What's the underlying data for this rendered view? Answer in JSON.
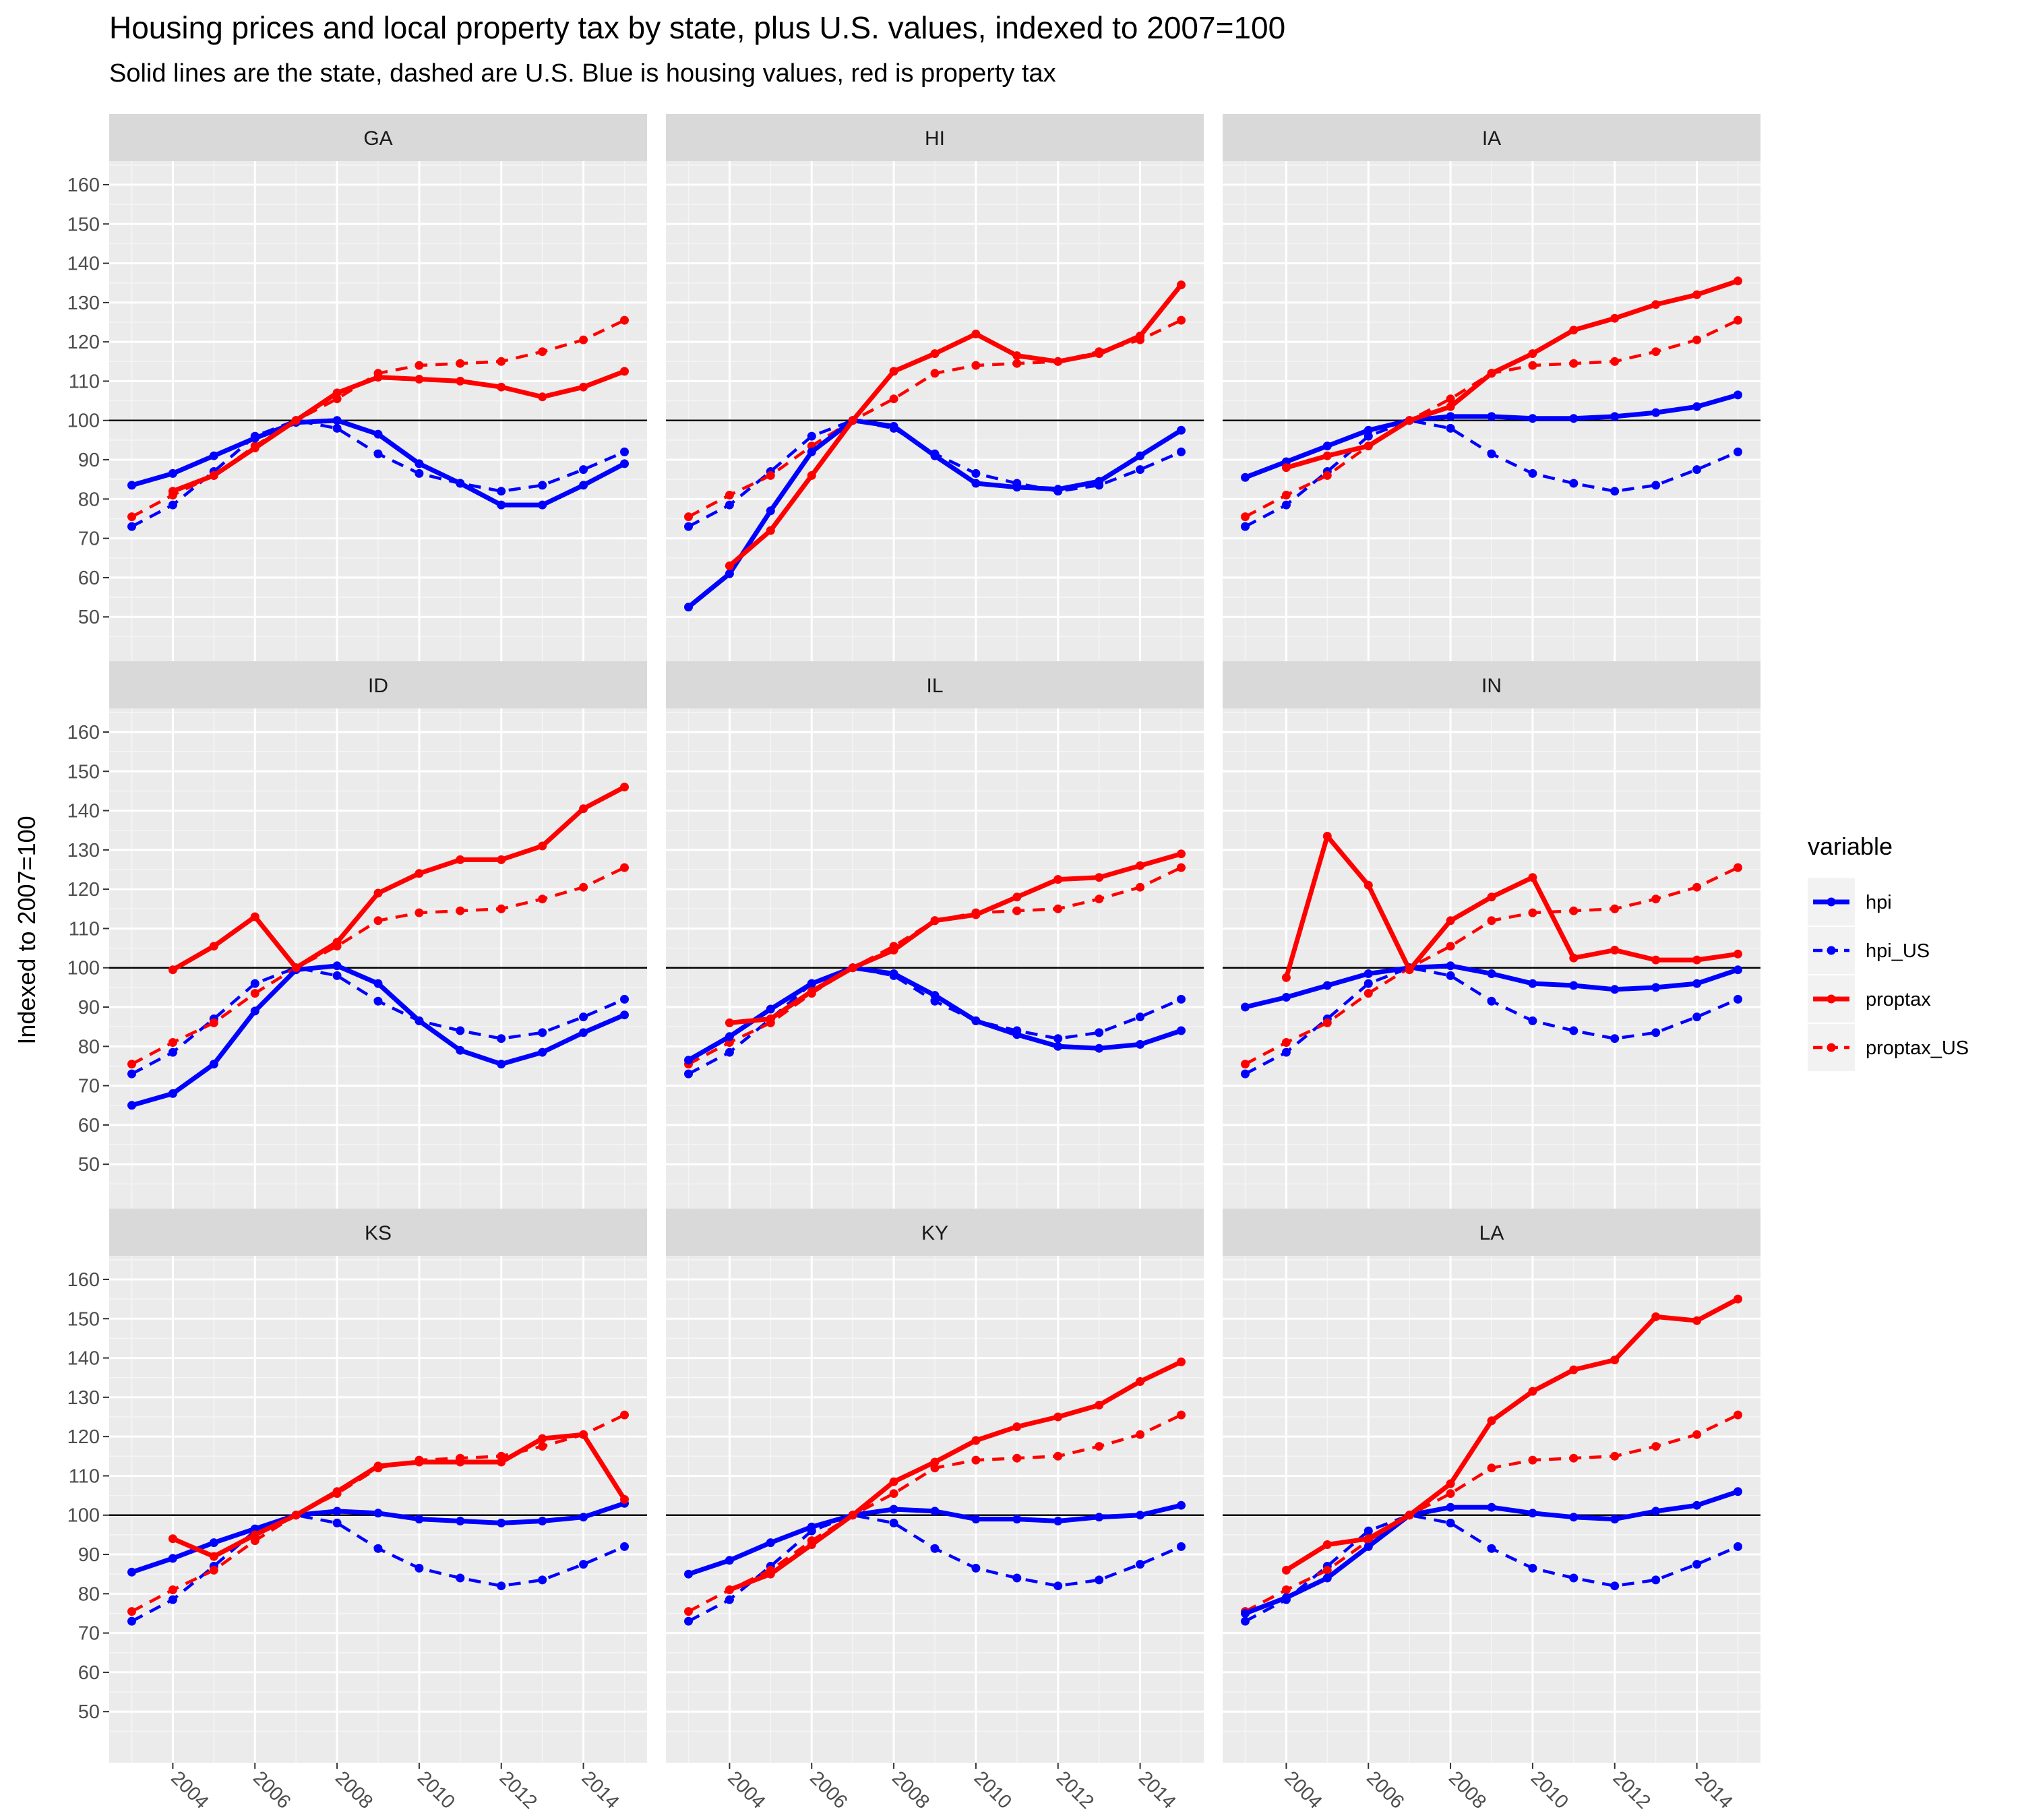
{
  "title": "Housing prices and local property tax by state, plus U.S. values, indexed to 2007=100",
  "subtitle": "Solid lines are the state, dashed are U.S. Blue is housing values, red is property tax",
  "chart_data": {
    "type": "line",
    "facets": [
      "GA",
      "HI",
      "IA",
      "ID",
      "IL",
      "IN",
      "KS",
      "KY",
      "LA"
    ],
    "years": [
      2003,
      2004,
      2005,
      2006,
      2007,
      2008,
      2009,
      2010,
      2011,
      2012,
      2013,
      2014,
      2015
    ],
    "xlabel": "",
    "ylabel": "Indexed to 2007=100",
    "ylim": [
      37,
      166
    ],
    "xlim": [
      2002.45,
      2015.55
    ],
    "x_tick_labels": [
      "2004",
      "2006",
      "2008",
      "2010",
      "2012",
      "2014"
    ],
    "y_tick_labels": [
      "50",
      "60",
      "70",
      "80",
      "90",
      "100",
      "110",
      "120",
      "130",
      "140",
      "150",
      "160"
    ],
    "reference_line": 100,
    "grid": true,
    "legend": {
      "title": "variable",
      "position": "right",
      "entries": [
        {
          "key": "hpi",
          "label": "hpi",
          "color": "#0000ff",
          "linetype": "solid"
        },
        {
          "key": "hpi_US",
          "label": "hpi_US",
          "color": "#0000ff",
          "linetype": "dashed"
        },
        {
          "key": "proptax",
          "label": "proptax",
          "color": "#ff0000",
          "linetype": "solid"
        },
        {
          "key": "proptax_US",
          "label": "proptax_US",
          "color": "#ff0000",
          "linetype": "dashed"
        }
      ]
    },
    "us": {
      "hpi_US": [
        73,
        78.5,
        87,
        96,
        100,
        98,
        91.5,
        86.5,
        84,
        82,
        83.5,
        87.5,
        92
      ],
      "proptax_US": [
        75.5,
        81,
        86,
        93.5,
        100,
        105.5,
        112,
        114,
        114.5,
        115,
        117.5,
        120.5,
        125.5
      ]
    },
    "states": {
      "GA": {
        "hpi": [
          83.5,
          86.5,
          91,
          95.5,
          99.5,
          100,
          96.5,
          89,
          84,
          78.5,
          78.5,
          83.5,
          89
        ],
        "proptax": [
          null,
          82,
          86,
          93,
          100,
          107,
          111,
          110.5,
          110,
          108.5,
          106,
          108.5,
          112.5
        ]
      },
      "HI": {
        "hpi": [
          52.5,
          61,
          77,
          92,
          100,
          98.5,
          91,
          84,
          83,
          82.5,
          84.5,
          91,
          97.5
        ],
        "proptax": [
          null,
          63,
          72,
          86,
          100,
          112.5,
          117,
          122,
          116.5,
          115,
          117,
          121.5,
          134.5
        ]
      },
      "IA": {
        "hpi": [
          85.5,
          89.5,
          93.5,
          97.5,
          100,
          101,
          101,
          100.5,
          100.5,
          101,
          102,
          103.5,
          106.5
        ],
        "proptax": [
          null,
          88,
          91,
          93.5,
          100,
          103.5,
          112,
          117,
          123,
          126,
          129.5,
          132,
          135.5
        ]
      },
      "ID": {
        "hpi": [
          65,
          68,
          75.5,
          89,
          99.5,
          100.5,
          96,
          86.5,
          79,
          75.5,
          78.5,
          83.5,
          88
        ],
        "proptax": [
          null,
          99.5,
          105.5,
          113,
          100,
          106.5,
          119,
          124,
          127.5,
          127.5,
          131,
          140.5,
          146
        ]
      },
      "IL": {
        "hpi": [
          76.5,
          82.5,
          89.5,
          96,
          100,
          98.5,
          93,
          86.5,
          83,
          80,
          79.5,
          80.5,
          84
        ],
        "proptax": [
          null,
          86,
          87,
          94,
          100,
          104.5,
          112,
          113.5,
          118,
          122.5,
          123,
          126,
          129
        ]
      },
      "IN": {
        "hpi": [
          90,
          92.5,
          95.5,
          98.5,
          100,
          100.5,
          98.5,
          96,
          95.5,
          94.5,
          95,
          96,
          99.5
        ],
        "proptax": [
          null,
          97.5,
          133.5,
          121,
          99.5,
          112,
          118,
          123,
          102.5,
          104.5,
          102,
          102,
          103.5
        ]
      },
      "KS": {
        "hpi": [
          85.5,
          89,
          93,
          96.5,
          100,
          101,
          100.5,
          99,
          98.5,
          98,
          98.5,
          99.5,
          103
        ],
        "proptax": [
          null,
          94,
          89.5,
          95,
          100,
          106,
          112.5,
          113.5,
          113.5,
          113.5,
          119.5,
          120.5,
          104
        ]
      },
      "KY": {
        "hpi": [
          85,
          88.5,
          93,
          97,
          100,
          101.5,
          101,
          99,
          99,
          98.5,
          99.5,
          100,
          102.5
        ],
        "proptax": [
          null,
          81,
          85,
          92.5,
          100,
          108.5,
          113.5,
          119,
          122.5,
          125,
          128,
          134,
          139
        ]
      },
      "LA": {
        "hpi": [
          75,
          79,
          84,
          92,
          100,
          102,
          102,
          100.5,
          99.5,
          99,
          101,
          102.5,
          106
        ],
        "proptax": [
          null,
          86,
          92.5,
          94,
          100,
          108,
          124,
          131.5,
          137,
          139.5,
          150.5,
          149.5,
          155
        ]
      }
    }
  }
}
